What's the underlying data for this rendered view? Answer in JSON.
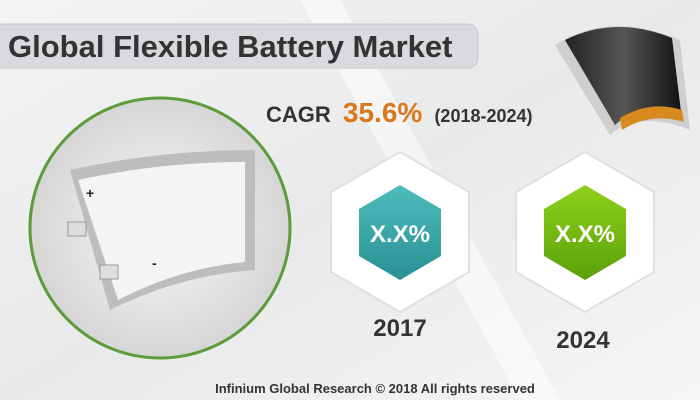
{
  "header": {
    "title": "Global Flexible Battery Market"
  },
  "cagr": {
    "label": "CAGR",
    "value": "35.6%",
    "period": "(2018-2024)"
  },
  "battery_signs": [
    "+",
    "-"
  ],
  "stats": [
    {
      "value": "X.X%",
      "year": "2017"
    },
    {
      "value": "X.X%",
      "year": "2024"
    }
  ],
  "footer": "Infinium Global Research © 2018 All rights reserved"
}
